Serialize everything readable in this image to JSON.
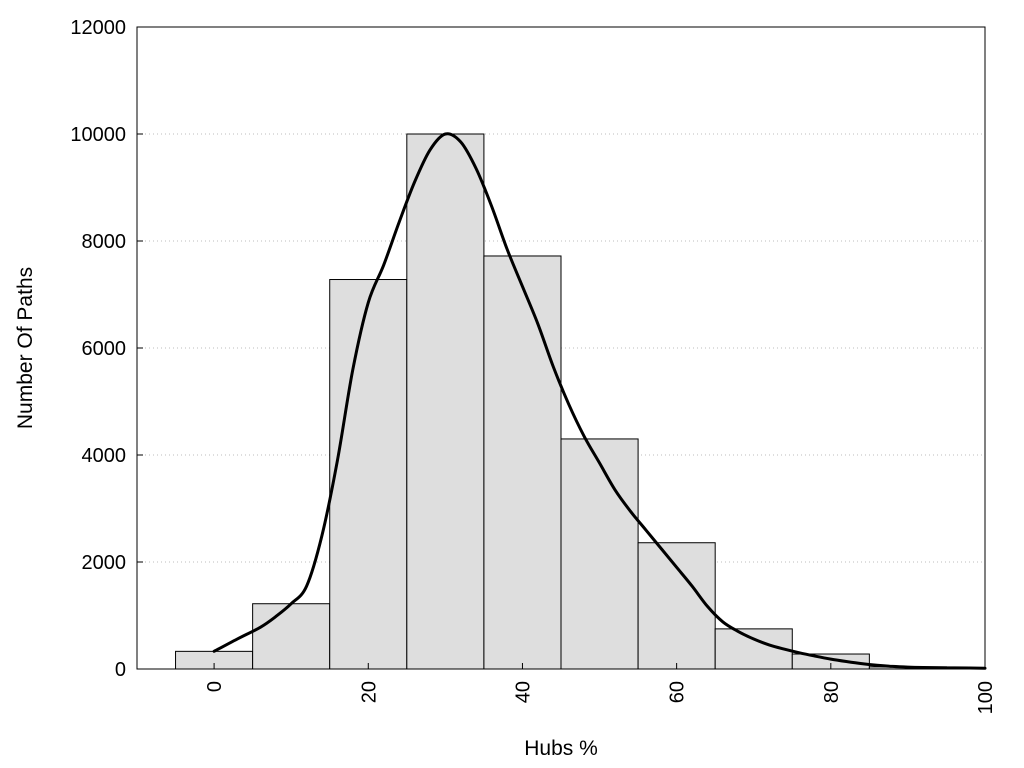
{
  "chart_data": {
    "type": "bar",
    "title": "",
    "xlabel": "Hubs %",
    "ylabel": "Number Of Paths",
    "xlim": [
      -10,
      100
    ],
    "ylim": [
      0,
      12000
    ],
    "x_ticks": [
      0,
      20,
      40,
      60,
      80,
      100
    ],
    "y_ticks": [
      0,
      2000,
      4000,
      6000,
      8000,
      10000,
      12000
    ],
    "grid": "horizontal-dotted",
    "legend": "none",
    "bin_width": 10,
    "bars": [
      {
        "x": 0,
        "value": 330
      },
      {
        "x": 10,
        "value": 1220
      },
      {
        "x": 20,
        "value": 7280
      },
      {
        "x": 30,
        "value": 10000
      },
      {
        "x": 40,
        "value": 7720
      },
      {
        "x": 50,
        "value": 4300
      },
      {
        "x": 60,
        "value": 2360
      },
      {
        "x": 70,
        "value": 750
      },
      {
        "x": 80,
        "value": 280
      },
      {
        "x": 90,
        "value": 40
      },
      {
        "x": 100,
        "value": 20
      }
    ],
    "curve": {
      "x": [
        0,
        3,
        6,
        8,
        10,
        12,
        14,
        16,
        18,
        20,
        22,
        24,
        26,
        28,
        30,
        32,
        34,
        36,
        38,
        40,
        42,
        44,
        46,
        48,
        50,
        52,
        54,
        56,
        58,
        60,
        62,
        64,
        66,
        68,
        70,
        72,
        74,
        76,
        78,
        80,
        82,
        84,
        86,
        88,
        90,
        92,
        95,
        98,
        100
      ],
      "y": [
        330,
        560,
        780,
        980,
        1220,
        1550,
        2500,
        3900,
        5600,
        6850,
        7550,
        8350,
        9100,
        9700,
        10000,
        9850,
        9350,
        8650,
        7850,
        7150,
        6450,
        5650,
        4950,
        4350,
        3850,
        3350,
        2950,
        2600,
        2250,
        1900,
        1550,
        1170,
        880,
        700,
        560,
        450,
        370,
        300,
        240,
        185,
        140,
        100,
        70,
        48,
        35,
        28,
        22,
        18,
        15
      ]
    },
    "colors": {
      "bar_fill": "#dedede",
      "bar_stroke": "#000000",
      "curve": "#000000"
    }
  }
}
